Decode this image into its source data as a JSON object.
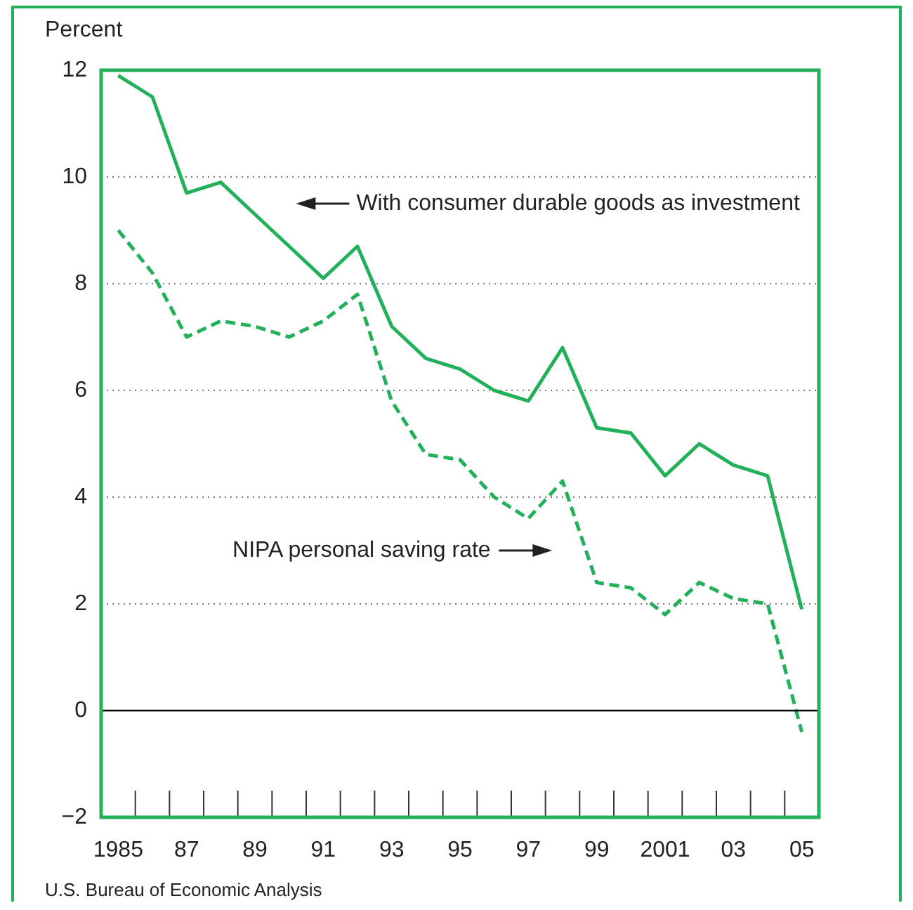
{
  "chart_data": {
    "type": "line",
    "ylabel": "Percent",
    "categories": [
      "1985",
      null,
      "87",
      null,
      "89",
      null,
      "91",
      null,
      "93",
      null,
      "95",
      null,
      "97",
      null,
      "99",
      null,
      "2001",
      null,
      "03",
      null,
      "05"
    ],
    "series": [
      {
        "name": "With consumer durable goods as investment",
        "color": "#22b05a",
        "values": [
          11.9,
          11.5,
          9.7,
          9.9,
          9.3,
          8.7,
          8.1,
          8.7,
          7.2,
          6.6,
          6.4,
          6.0,
          5.8,
          6.8,
          5.3,
          5.2,
          4.4,
          5.0,
          4.6,
          4.4,
          1.9
        ]
      },
      {
        "name": "NIPA personal saving rate",
        "color": "#22b05a",
        "line_style": "dashed",
        "values": [
          9.0,
          8.2,
          7.0,
          7.3,
          7.2,
          7.0,
          7.3,
          7.8,
          5.8,
          4.8,
          4.7,
          4.0,
          3.6,
          4.3,
          2.4,
          2.3,
          1.8,
          2.4,
          2.1,
          2.0,
          -0.4
        ]
      }
    ],
    "ylim": [
      -2,
      12
    ],
    "yticks": [
      {
        "value": -2,
        "label": "−2"
      },
      0,
      2,
      4,
      6,
      8,
      10,
      12
    ],
    "grid": "y",
    "legend": false,
    "marker": "none",
    "ref_lines": [
      {
        "axis": "y",
        "value": 0,
        "color": "#000000"
      }
    ],
    "annotations": [
      "U.S. Bureau of Economic Analysis"
    ]
  }
}
